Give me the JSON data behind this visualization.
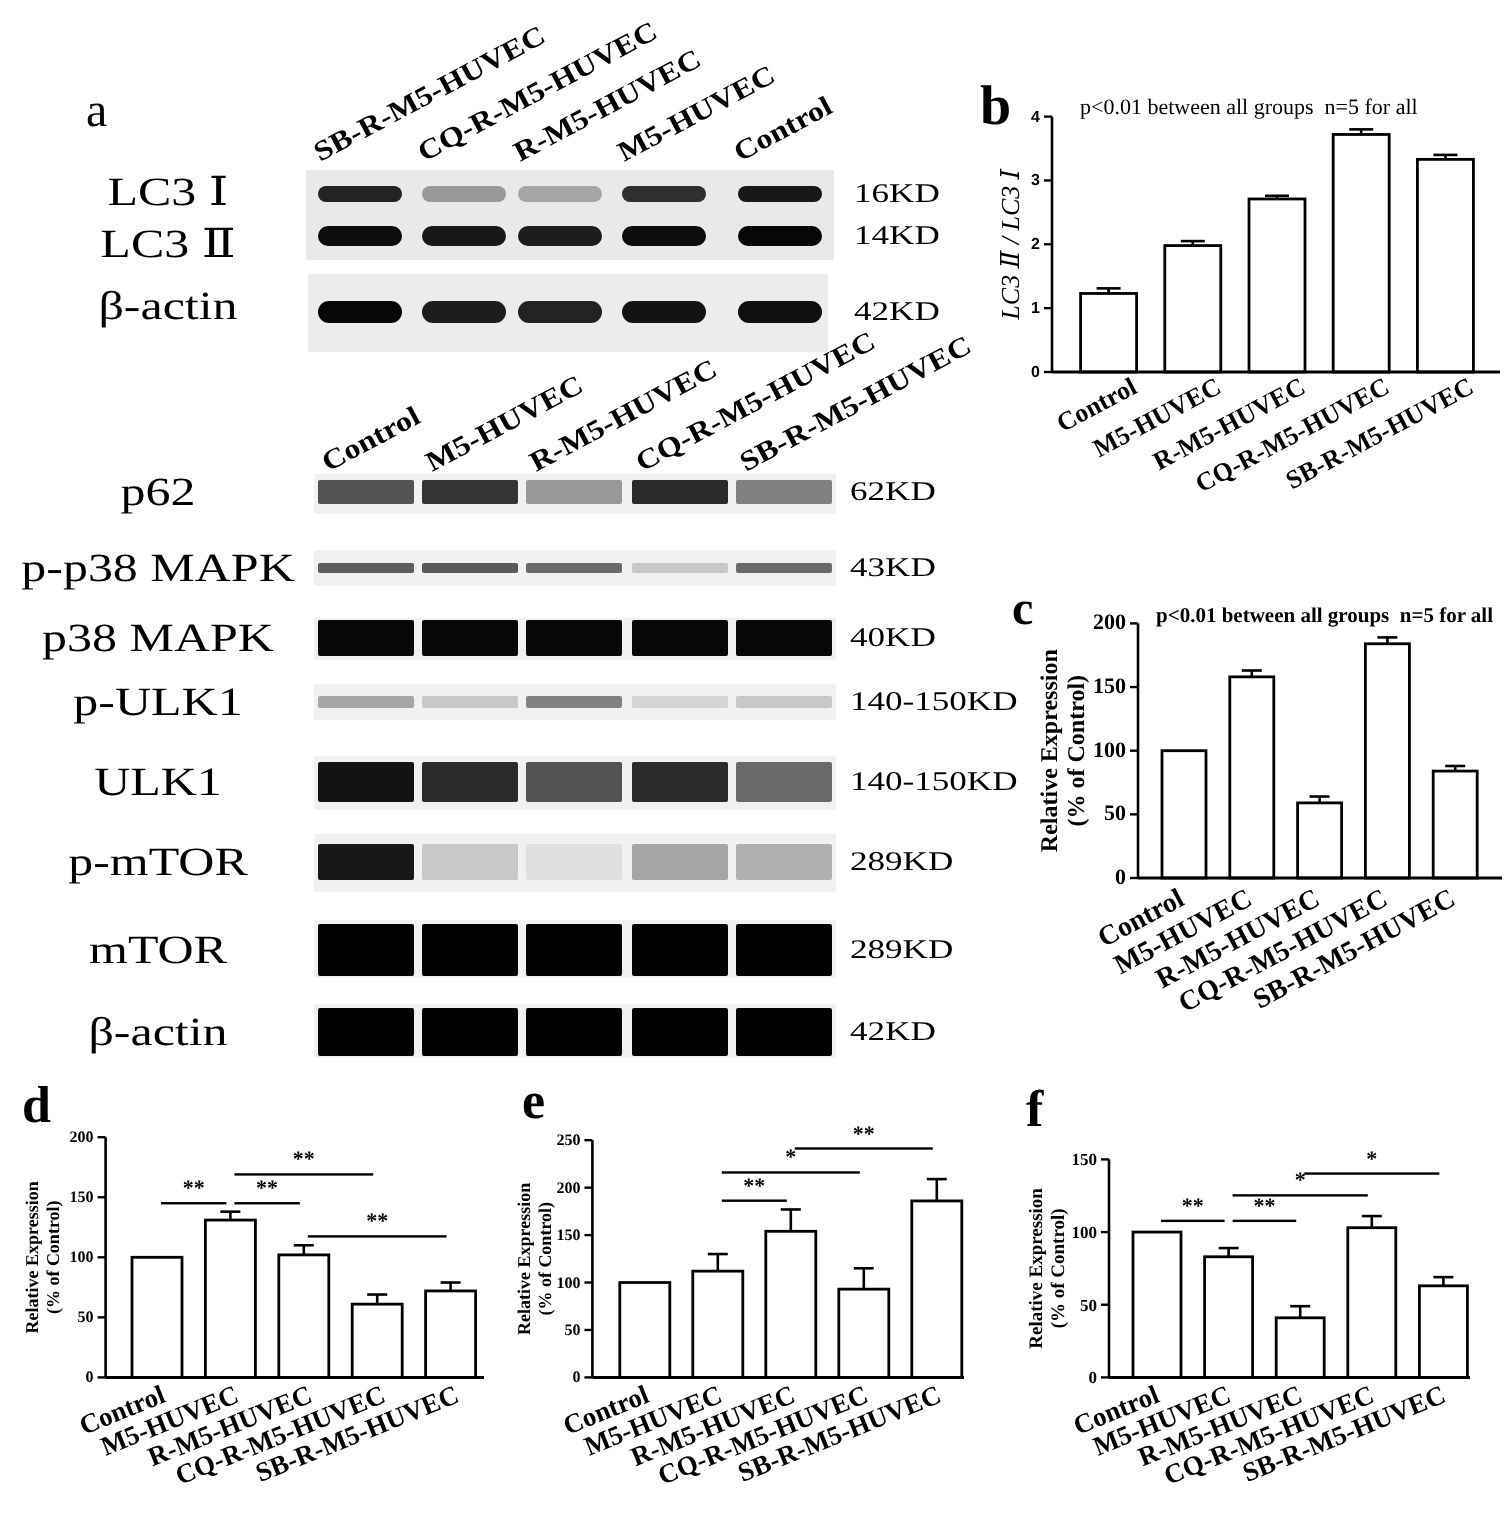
{
  "chart_data": [
    {
      "type": "other",
      "title": "a",
      "categories": [
        "SB-R-M5-HUVEC",
        "CQ-R-M5-HUVEC",
        "R-M5-HUVEC",
        "M5-HUVEC",
        "Control"
      ],
      "y_categories": [
        "LC3 Ⅰ",
        "LC3 Ⅱ",
        "β-actin"
      ],
      "y2_categories": [
        "16KD",
        "14KD",
        "42KD"
      ]
    },
    {
      "type": "bar",
      "title": "b",
      "subtitle": "p<0.01 between all groups  n=5 for all",
      "ylabel": "LC3 Ⅱ / LC3 Ⅰ",
      "categories": [
        "Control",
        "M5-HUVEC",
        "R-M5-HUVEC",
        "CQ-R-M5-HUVEC",
        "SB-R-M5-HUVEC"
      ],
      "values": [
        1.23,
        1.98,
        2.71,
        3.72,
        3.33
      ],
      "errors": [
        0.08,
        0.07,
        0.05,
        0.08,
        0.07
      ],
      "color": "#ffffff",
      "ylim": [
        0,
        4
      ],
      "yticks": [
        0,
        1,
        2,
        3,
        4
      ]
    },
    {
      "type": "other",
      "categories": [
        "Control",
        "M5-HUVEC",
        "R-M5-HUVEC",
        "CQ-R-M5-HUVEC",
        "SB-R-M5-HUVEC"
      ],
      "y_categories": [
        "p62",
        "p-p38 MAPK",
        "p38 MAPK",
        "p-ULK1",
        "ULK1",
        "p-mTOR",
        "mTOR",
        "β-actin"
      ],
      "y2_categories": [
        "62KD",
        "43KD",
        "40KD",
        "140-150KD",
        "140-150KD",
        "289KD",
        "289KD",
        "42KD"
      ]
    },
    {
      "type": "bar",
      "title": "c",
      "subtitle": "p<0.01 between all groups  n=5 for all",
      "ylabel": "Relative Expression\n(% of Control)",
      "categories": [
        "Control",
        "M5-HUVEC",
        "R-M5-HUVEC",
        "CQ-R-M5-HUVEC",
        "SB-R-M5-HUVEC"
      ],
      "values": [
        100,
        158,
        59,
        184,
        84
      ],
      "errors": [
        null,
        5,
        5,
        5,
        4
      ],
      "color": "#ffffff",
      "ylim": [
        0,
        200
      ],
      "yticks": [
        0,
        50,
        100,
        150,
        200
      ]
    },
    {
      "type": "bar",
      "title": "d",
      "ylabel": "Relative Expression\n(% of Control)",
      "categories": [
        "Control",
        "M5-HUVEC",
        "R-M5-HUVEC",
        "CQ-R-M5-HUVEC",
        "SB-R-M5-HUVEC"
      ],
      "values": [
        100,
        131,
        102,
        61,
        72
      ],
      "errors": [
        null,
        7,
        8,
        8,
        7
      ],
      "color": "#ffffff",
      "ylim": [
        0,
        200
      ],
      "yticks": [
        0,
        50,
        100,
        150,
        200
      ],
      "annotations": [
        "**",
        "**",
        "**",
        "**"
      ]
    },
    {
      "type": "bar",
      "title": "e",
      "ylabel": "Relative Expression\n(% of Control)",
      "categories": [
        "Control",
        "M5-HUVEC",
        "R-M5-HUVEC",
        "CQ-R-M5-HUVEC",
        "SB-R-M5-HUVEC"
      ],
      "values": [
        100,
        112,
        154,
        93,
        186
      ],
      "errors": [
        null,
        18,
        23,
        22,
        23
      ],
      "color": "#ffffff",
      "ylim": [
        0,
        250
      ],
      "yticks": [
        0,
        50,
        100,
        150,
        200,
        250
      ],
      "annotations": [
        "**",
        "*",
        "**"
      ]
    },
    {
      "type": "bar",
      "title": "f",
      "ylabel": "Relative Expression\n(% of Control)",
      "categories": [
        "Control",
        "M5-HUVEC",
        "R-M5-HUVEC",
        "CQ-R-M5-HUVEC",
        "SB-R-M5-HUVEC"
      ],
      "values": [
        100,
        83,
        41,
        103,
        63
      ],
      "errors": [
        null,
        6,
        8,
        8,
        6
      ],
      "color": "#ffffff",
      "ylim": [
        0,
        150
      ],
      "yticks": [
        0,
        50,
        100,
        150
      ],
      "annotations": [
        "**",
        "**",
        "*",
        "*"
      ]
    }
  ]
}
